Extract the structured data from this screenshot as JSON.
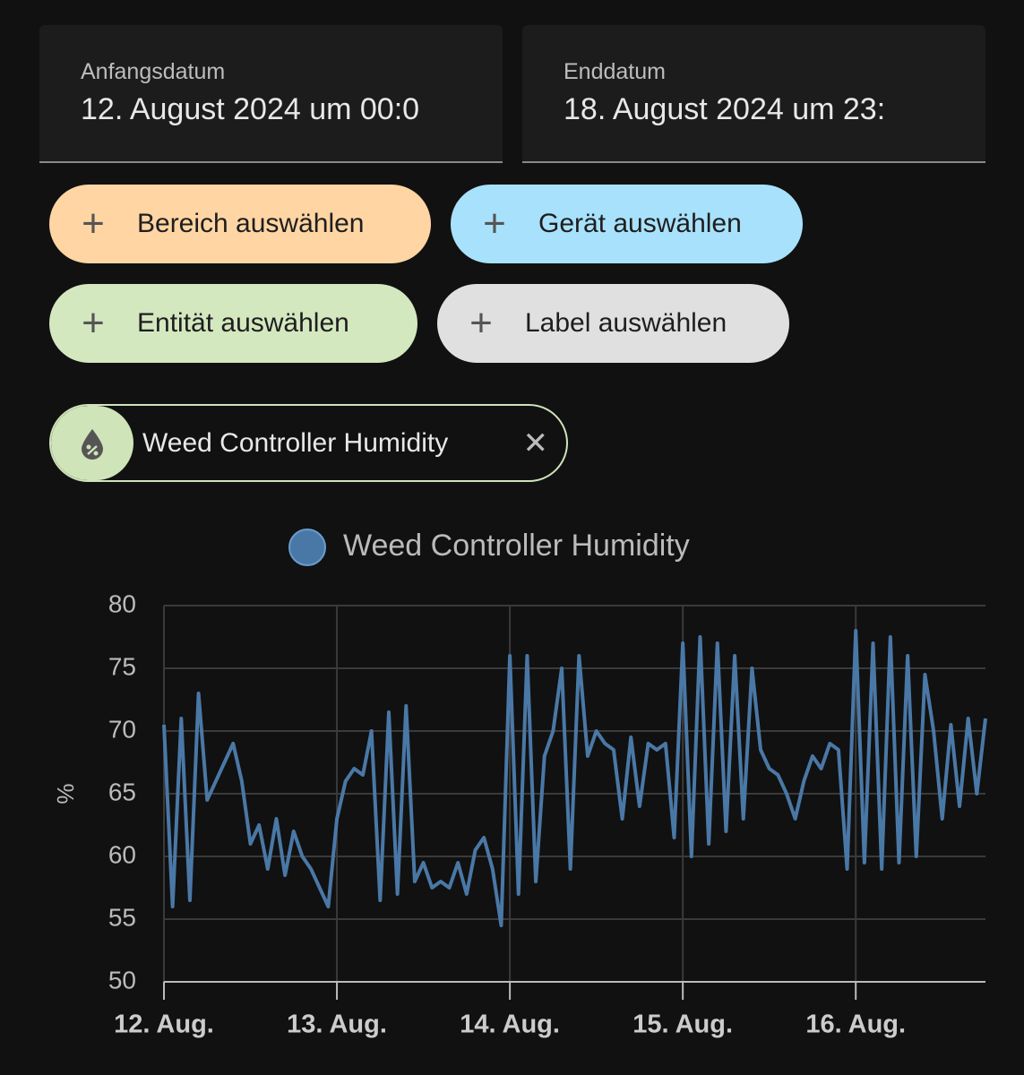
{
  "date_range": {
    "start": {
      "label": "Anfangsdatum",
      "value": "12. August 2024 um 00:0"
    },
    "end": {
      "label": "Enddatum",
      "value": "18. August 2024 um 23:"
    }
  },
  "filters": [
    "Bereich auswählen",
    "Gerät auswählen",
    "Entität auswählen",
    "Label auswählen"
  ],
  "selected": [
    {
      "label": "Weed Controller Humidity"
    }
  ],
  "chart_data": {
    "type": "line",
    "y_label": "%",
    "x": [
      12,
      12.05,
      12.1,
      12.15,
      12.2,
      12.25,
      12.3,
      12.35,
      12.4,
      12.45,
      12.5,
      12.55,
      12.6,
      12.65,
      12.7,
      12.75,
      12.8,
      12.85,
      12.9,
      12.95,
      13,
      13.05,
      13.1,
      13.15,
      13.2,
      13.25,
      13.3,
      13.35,
      13.4,
      13.45,
      13.5,
      13.55,
      13.6,
      13.65,
      13.7,
      13.75,
      13.8,
      13.85,
      13.9,
      13.95,
      14,
      14.05,
      14.1,
      14.15,
      14.2,
      14.25,
      14.3,
      14.35,
      14.4,
      14.45,
      14.5,
      14.55,
      14.6,
      14.65,
      14.7,
      14.75,
      14.8,
      14.85,
      14.9,
      14.95,
      15,
      15.05,
      15.1,
      15.15,
      15.2,
      15.25,
      15.3,
      15.35,
      15.4,
      15.45,
      15.5,
      15.55,
      15.6,
      15.65,
      15.7,
      15.75,
      15.8,
      15.85,
      15.9,
      15.95,
      16,
      16.05,
      16.1,
      16.15,
      16.2,
      16.25,
      16.3,
      16.35,
      16.4,
      16.45,
      16.5,
      16.55,
      16.6,
      16.65,
      16.7,
      16.75
    ],
    "series": [
      {
        "name": "Weed Controller Humidity",
        "color": "#4a78a6",
        "values": [
          70.5,
          56,
          71,
          56.5,
          73,
          64.5,
          66,
          67.5,
          69,
          66,
          61,
          62.5,
          59,
          63,
          58.5,
          62,
          60,
          59,
          57.5,
          56,
          63,
          66,
          67,
          66.5,
          70,
          56.5,
          71.5,
          57,
          72,
          58,
          59.5,
          57.5,
          58,
          57.5,
          59.5,
          57,
          60.5,
          61.5,
          59,
          54.5,
          76,
          57,
          76,
          58,
          68,
          70,
          75,
          59,
          76,
          68,
          70,
          69,
          68.5,
          63,
          69.5,
          64,
          69,
          68.5,
          69,
          61.5,
          77,
          60,
          77.5,
          61,
          77,
          62,
          76,
          63,
          75,
          68.5,
          67,
          66.5,
          65,
          63,
          66,
          68,
          67,
          69,
          68.5,
          59,
          78,
          59.5,
          77,
          59,
          77.5,
          59.5,
          76,
          60,
          74.5,
          70,
          63,
          70.5,
          64,
          71,
          65,
          71
        ]
      }
    ],
    "xlim": [
      12,
      16.75
    ],
    "xticks": [
      {
        "value": 12,
        "label": "12. Aug."
      },
      {
        "value": 13,
        "label": "13. Aug."
      },
      {
        "value": 14,
        "label": "14. Aug."
      },
      {
        "value": 15,
        "label": "15. Aug."
      },
      {
        "value": 16,
        "label": "16. Aug."
      }
    ],
    "ylim": [
      50,
      80
    ],
    "yticks": [
      50,
      55,
      60,
      65,
      70,
      75,
      80
    ],
    "grid": true
  }
}
